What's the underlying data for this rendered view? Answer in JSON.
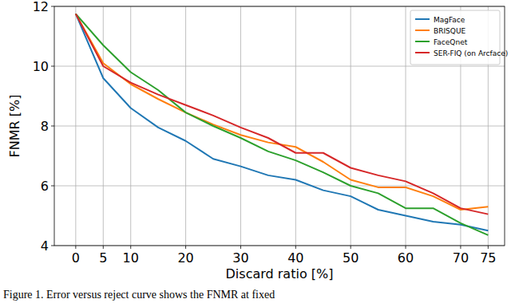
{
  "chart_data": {
    "type": "line",
    "xlabel": "Discard ratio [%]",
    "ylabel": "FNMR [%]",
    "caption": "Figure 1. Error versus reject curve shows the FNMR at fixed",
    "x": [
      0,
      5,
      10,
      15,
      20,
      25,
      30,
      35,
      40,
      45,
      50,
      55,
      60,
      65,
      70,
      75
    ],
    "series": [
      {
        "name": "MagFace",
        "color": "#1f77b4",
        "values": [
          11.75,
          9.6,
          8.6,
          7.95,
          7.5,
          6.9,
          6.65,
          6.35,
          6.2,
          5.85,
          5.65,
          5.2,
          5.0,
          4.8,
          4.7,
          4.5
        ]
      },
      {
        "name": "BRISQUE",
        "color": "#ff7f0e",
        "values": [
          11.75,
          10.1,
          9.4,
          8.9,
          8.45,
          8.05,
          7.7,
          7.45,
          7.3,
          6.8,
          6.2,
          5.95,
          5.95,
          5.65,
          5.2,
          5.3
        ]
      },
      {
        "name": "FaceQnet",
        "color": "#2ca02c",
        "values": [
          11.75,
          10.7,
          9.8,
          9.2,
          8.45,
          8.0,
          7.6,
          7.15,
          6.85,
          6.45,
          6.0,
          5.75,
          5.25,
          5.25,
          4.75,
          4.35
        ]
      },
      {
        "name": "SER-FIQ (on Arcface)",
        "color": "#d62728",
        "values": [
          11.75,
          10.0,
          9.45,
          9.05,
          8.7,
          8.35,
          7.95,
          7.6,
          7.1,
          7.1,
          6.6,
          6.35,
          6.15,
          5.75,
          5.25,
          5.05
        ]
      }
    ],
    "xlim": [
      -3.9,
      78
    ],
    "ylim": [
      4,
      12
    ],
    "xticks": [
      0,
      5,
      10,
      20,
      30,
      40,
      50,
      60,
      70,
      75
    ],
    "yticks": [
      4,
      6,
      8,
      10,
      12
    ],
    "grid": true,
    "legend": "upper right"
  }
}
